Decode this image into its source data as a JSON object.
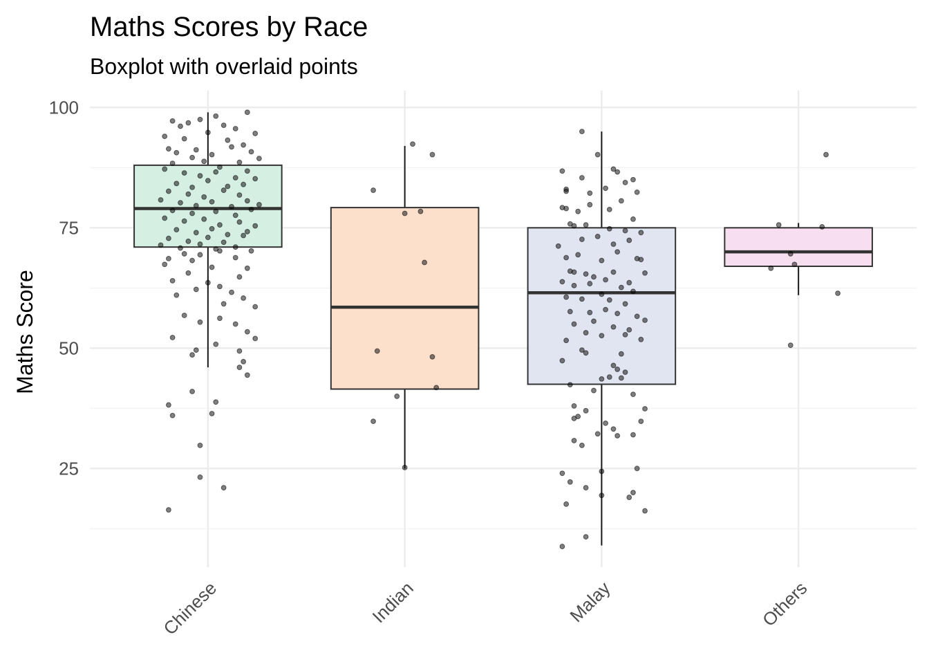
{
  "chart_data": {
    "type": "boxplot",
    "title": "Maths Scores by Race",
    "subtitle": "Boxplot with overlaid points",
    "ylabel": "Maths Score",
    "xlabel": "",
    "ylim": [
      4.5,
      103.5
    ],
    "yticks": [
      25,
      50,
      75,
      100
    ],
    "yminor": [
      12.5,
      37.5,
      62.5,
      87.5
    ],
    "grid": true,
    "categories": [
      "Chinese",
      "Indian",
      "Malay",
      "Others"
    ],
    "colors": [
      "#d5efe3",
      "#fde0cc",
      "#e0e5f1",
      "#f8dff0"
    ],
    "boxes": [
      {
        "category": "Chinese",
        "min": 46,
        "q1": 71,
        "median": 79,
        "q3": 88,
        "max": 99
      },
      {
        "category": "Indian",
        "min": 25,
        "q1": 41.5,
        "median": 58.5,
        "q3": 79.2,
        "max": 92
      },
      {
        "category": "Malay",
        "min": 9,
        "q1": 42.5,
        "median": 61.5,
        "q3": 75,
        "max": 95
      },
      {
        "category": "Others",
        "min": 61,
        "q1": 67,
        "median": 70,
        "q3": 75,
        "max": 76
      }
    ],
    "points": [
      [
        [
          -0.18,
          97.2
        ],
        [
          -0.14,
          96.1
        ],
        [
          -0.1,
          96.8
        ],
        [
          -0.04,
          97.5
        ],
        [
          0.04,
          98.2
        ],
        [
          0.08,
          96.3
        ],
        [
          0.14,
          95.6
        ],
        [
          0.2,
          99.0
        ],
        [
          -0.22,
          94.0
        ],
        [
          -0.12,
          93.5
        ],
        [
          0.0,
          94.8
        ],
        [
          0.1,
          93.2
        ],
        [
          0.24,
          94.6
        ],
        [
          -0.2,
          91.4
        ],
        [
          -0.16,
          90.6
        ],
        [
          -0.06,
          91.2
        ],
        [
          0.02,
          90.2
        ],
        [
          0.12,
          91.8
        ],
        [
          0.18,
          92.2
        ],
        [
          0.22,
          90.8
        ],
        [
          -0.08,
          89.6
        ],
        [
          -0.18,
          88.4
        ],
        [
          -0.02,
          88.8
        ],
        [
          0.06,
          87.6
        ],
        [
          0.16,
          88.6
        ],
        [
          0.26,
          89.4
        ],
        [
          -0.22,
          87.2
        ],
        [
          -0.12,
          86.4
        ],
        [
          -0.04,
          85.8
        ],
        [
          0.04,
          86.6
        ],
        [
          0.14,
          85.4
        ],
        [
          0.2,
          86.8
        ],
        [
          -0.16,
          84.2
        ],
        [
          -0.08,
          83.4
        ],
        [
          0.0,
          84.8
        ],
        [
          0.1,
          83.6
        ],
        [
          0.18,
          84.0
        ],
        [
          0.24,
          85.2
        ],
        [
          -0.2,
          82.6
        ],
        [
          -0.1,
          82.0
        ],
        [
          -0.02,
          81.4
        ],
        [
          0.08,
          82.8
        ],
        [
          0.16,
          81.8
        ],
        [
          -0.24,
          80.8
        ],
        [
          -0.14,
          80.2
        ],
        [
          -0.06,
          79.6
        ],
        [
          0.02,
          80.4
        ],
        [
          0.12,
          79.4
        ],
        [
          0.2,
          80.6
        ],
        [
          0.26,
          79.8
        ],
        [
          -0.18,
          78.6
        ],
        [
          -0.08,
          78.0
        ],
        [
          0.04,
          78.4
        ],
        [
          0.14,
          77.6
        ],
        [
          0.22,
          78.8
        ],
        [
          -0.22,
          77.0
        ],
        [
          -0.12,
          76.4
        ],
        [
          -0.02,
          76.8
        ],
        [
          0.06,
          75.6
        ],
        [
          0.16,
          76.2
        ],
        [
          0.24,
          75.4
        ],
        [
          -0.16,
          74.6
        ],
        [
          -0.06,
          74.0
        ],
        [
          0.02,
          74.8
        ],
        [
          0.1,
          73.6
        ],
        [
          0.2,
          74.2
        ],
        [
          -0.2,
          72.8
        ],
        [
          -0.1,
          72.2
        ],
        [
          0.0,
          73.0
        ],
        [
          0.08,
          72.0
        ],
        [
          0.18,
          73.4
        ],
        [
          -0.24,
          71.4
        ],
        [
          -0.14,
          70.8
        ],
        [
          -0.04,
          71.6
        ],
        [
          0.06,
          70.2
        ],
        [
          0.14,
          71.0
        ],
        [
          -0.12,
          69.6
        ],
        [
          -0.04,
          69.4
        ],
        [
          0.04,
          70.6
        ],
        [
          0.22,
          70.2
        ],
        [
          -0.2,
          68.6
        ],
        [
          -0.08,
          68.2
        ],
        [
          0.14,
          68.8
        ],
        [
          -0.22,
          67.4
        ],
        [
          0.02,
          66.8
        ],
        [
          0.2,
          66.6
        ],
        [
          -0.1,
          65.6
        ],
        [
          0.16,
          64.8
        ],
        [
          -0.18,
          64.0
        ],
        [
          0.0,
          63.6
        ],
        [
          0.06,
          62.8
        ],
        [
          -0.06,
          62.2
        ],
        [
          0.12,
          61.6
        ],
        [
          -0.16,
          61.0
        ],
        [
          0.18,
          60.4
        ],
        [
          0.08,
          59.2
        ],
        [
          0.24,
          58.6
        ],
        [
          -0.12,
          56.8
        ],
        [
          0.06,
          56.2
        ],
        [
          -0.04,
          55.4
        ],
        [
          0.14,
          55.0
        ],
        [
          0.2,
          53.4
        ],
        [
          -0.18,
          52.2
        ],
        [
          0.24,
          52.0
        ],
        [
          0.04,
          50.8
        ],
        [
          -0.06,
          49.6
        ],
        [
          0.16,
          49.4
        ],
        [
          -0.08,
          48.6
        ],
        [
          0.18,
          47.2
        ],
        [
          0.16,
          46.0
        ],
        [
          0.2,
          44.4
        ],
        [
          -0.08,
          41.0
        ],
        [
          -0.2,
          38.2
        ],
        [
          0.04,
          38.8
        ],
        [
          -0.18,
          36.0
        ],
        [
          0.02,
          36.4
        ],
        [
          -0.04,
          29.8
        ],
        [
          -0.04,
          23.2
        ],
        [
          0.08,
          21.0
        ],
        [
          -0.2,
          16.4
        ]
      ],
      [
        [
          -0.16,
          82.8
        ],
        [
          0.04,
          92.4
        ],
        [
          0.14,
          90.2
        ],
        [
          0.0,
          78.0
        ],
        [
          0.08,
          78.4
        ],
        [
          0.1,
          67.8
        ],
        [
          -0.14,
          49.4
        ],
        [
          0.14,
          48.2
        ],
        [
          0.16,
          41.8
        ],
        [
          -0.04,
          40.0
        ],
        [
          -0.16,
          34.8
        ],
        [
          0.0,
          25.2
        ]
      ],
      [
        [
          -0.2,
          86.8
        ],
        [
          -0.1,
          85.4
        ],
        [
          -0.02,
          90.2
        ],
        [
          0.06,
          87.2
        ],
        [
          0.08,
          86.6
        ],
        [
          0.16,
          85.0
        ],
        [
          -0.18,
          83.0
        ],
        [
          -0.18,
          82.6
        ],
        [
          -0.06,
          82.2
        ],
        [
          0.02,
          83.2
        ],
        [
          0.12,
          84.4
        ],
        [
          0.18,
          82.4
        ],
        [
          -0.2,
          79.2
        ],
        [
          -0.18,
          79.0
        ],
        [
          -0.12,
          78.4
        ],
        [
          -0.06,
          79.8
        ],
        [
          0.04,
          78.8
        ],
        [
          0.1,
          80.6
        ],
        [
          0.16,
          76.8
        ],
        [
          -0.16,
          75.8
        ],
        [
          -0.14,
          75.4
        ],
        [
          -0.08,
          75.6
        ],
        [
          0.04,
          74.8
        ],
        [
          0.12,
          74.4
        ],
        [
          0.2,
          74.0
        ],
        [
          -0.22,
          71.2
        ],
        [
          -0.1,
          72.6
        ],
        [
          -0.02,
          73.2
        ],
        [
          0.06,
          71.6
        ],
        [
          0.14,
          72.4
        ],
        [
          -0.18,
          68.8
        ],
        [
          -0.12,
          69.4
        ],
        [
          0.0,
          68.2
        ],
        [
          0.08,
          70.0
        ],
        [
          0.18,
          68.6
        ],
        [
          0.2,
          68.4
        ],
        [
          -0.16,
          66.0
        ],
        [
          -0.14,
          65.8
        ],
        [
          -0.08,
          65.4
        ],
        [
          -0.04,
          64.8
        ],
        [
          0.02,
          64.2
        ],
        [
          0.06,
          65.8
        ],
        [
          0.14,
          63.6
        ],
        [
          0.22,
          65.6
        ],
        [
          -0.2,
          63.8
        ],
        [
          -0.14,
          63.0
        ],
        [
          -0.06,
          63.4
        ],
        [
          0.0,
          61.2
        ],
        [
          0.1,
          62.6
        ],
        [
          0.16,
          61.8
        ],
        [
          -0.18,
          60.6
        ],
        [
          -0.1,
          60.2
        ],
        [
          0.04,
          60.0
        ],
        [
          0.12,
          59.2
        ],
        [
          -0.16,
          57.6
        ],
        [
          -0.06,
          57.4
        ],
        [
          0.02,
          58.0
        ],
        [
          0.08,
          57.2
        ],
        [
          0.18,
          56.6
        ],
        [
          0.22,
          55.8
        ],
        [
          -0.14,
          55.0
        ],
        [
          -0.04,
          55.6
        ],
        [
          0.06,
          54.4
        ],
        [
          0.14,
          53.8
        ],
        [
          -0.08,
          53.2
        ],
        [
          0.0,
          52.6
        ],
        [
          0.12,
          52.8
        ],
        [
          0.2,
          51.8
        ],
        [
          -0.18,
          51.6
        ],
        [
          -0.1,
          49.6
        ],
        [
          -0.08,
          49.0
        ],
        [
          0.1,
          48.8
        ],
        [
          -0.2,
          47.4
        ],
        [
          0.06,
          46.4
        ],
        [
          0.08,
          45.6
        ],
        [
          0.12,
          45.0
        ],
        [
          0.04,
          44.0
        ],
        [
          0.0,
          43.6
        ],
        [
          -0.16,
          42.4
        ],
        [
          0.1,
          43.8
        ],
        [
          -0.04,
          41.2
        ],
        [
          0.16,
          40.4
        ],
        [
          -0.14,
          38.0
        ],
        [
          -0.08,
          37.0
        ],
        [
          0.22,
          37.4
        ],
        [
          -0.12,
          35.8
        ],
        [
          -0.14,
          35.4
        ],
        [
          0.2,
          34.8
        ],
        [
          0.02,
          34.4
        ],
        [
          0.06,
          33.2
        ],
        [
          -0.02,
          32.2
        ],
        [
          0.08,
          31.8
        ],
        [
          -0.14,
          30.8
        ],
        [
          0.16,
          32.0
        ],
        [
          -0.1,
          29.8
        ],
        [
          0.0,
          24.4
        ],
        [
          0.18,
          25.0
        ],
        [
          -0.2,
          24.0
        ],
        [
          -0.16,
          22.2
        ],
        [
          -0.08,
          21.0
        ],
        [
          0.16,
          20.0
        ],
        [
          0.14,
          19.0
        ],
        [
          0.0,
          19.4
        ],
        [
          -0.18,
          17.6
        ],
        [
          0.22,
          16.2
        ],
        [
          -0.08,
          10.8
        ],
        [
          -0.2,
          8.8
        ],
        [
          -0.1,
          95.0
        ]
      ],
      [
        [
          -0.1,
          75.6
        ],
        [
          0.12,
          75.2
        ],
        [
          0.14,
          90.2
        ],
        [
          -0.14,
          66.6
        ],
        [
          -0.04,
          69.6
        ],
        [
          -0.02,
          67.4
        ],
        [
          0.2,
          61.4
        ],
        [
          -0.04,
          50.6
        ]
      ]
    ]
  }
}
